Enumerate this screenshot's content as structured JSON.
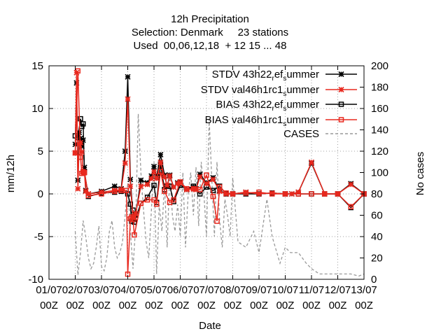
{
  "chart_data": {
    "type": "line",
    "title_lines": [
      "12h Precipitation",
      "Selection: Denmark     23 stations",
      "Used  00,06,12,18  + 12 15 ... 48"
    ],
    "xlabel": "Date",
    "ylabel": "mm/12h",
    "y2label": "No cases",
    "x_ticks": [
      "01/07",
      "02/07",
      "03/07",
      "04/07",
      "05/07",
      "06/07",
      "07/07",
      "08/07",
      "09/07",
      "10/07",
      "11/07",
      "12/07",
      "13/07"
    ],
    "x_tick_sub": "00Z",
    "x_range": [
      1,
      13
    ],
    "ylim": [
      -10,
      15
    ],
    "y_ticks": [
      -10,
      -5,
      0,
      5,
      10,
      15
    ],
    "y2lim": [
      0,
      200
    ],
    "y2_ticks": [
      0,
      20,
      40,
      60,
      80,
      100,
      120,
      140,
      160,
      180,
      200
    ],
    "grid": true,
    "legend_position": "top-right",
    "series": [
      {
        "name": "STDV 43h22_ref_summer",
        "label_main": "STDV 43h22",
        "label_sub1": "r",
        "label_mid": "ef",
        "label_sub2": "s",
        "label_end": "ummer",
        "color": "#000000",
        "dash": "",
        "marker": "star",
        "axis": "y1",
        "x": [
          2.0,
          2.05,
          2.1,
          2.15,
          2.2,
          2.25,
          2.3,
          2.35,
          2.4,
          2.5,
          3.0,
          3.5,
          3.75,
          3.9,
          4.0,
          4.1,
          4.2,
          4.25,
          4.3,
          4.5,
          4.75,
          4.9,
          5.0,
          5.1,
          5.25,
          5.4,
          5.5,
          5.6,
          5.75,
          5.9,
          6.0,
          6.25,
          6.5,
          6.6,
          6.75,
          7.0,
          7.25,
          7.5,
          7.75,
          8.0,
          8.5,
          9.0,
          9.5,
          10.0,
          10.25,
          10.5,
          11.0,
          11.5,
          12.0,
          12.5,
          13.0
        ],
        "y": [
          5.8,
          13.0,
          1.6,
          7.2,
          6.5,
          5.6,
          6.3,
          3.1,
          0.4,
          0.0,
          0.3,
          0.9,
          0.6,
          5.0,
          13.7,
          1.7,
          -2.6,
          -3.0,
          -2.5,
          1.6,
          1.3,
          2.1,
          3.2,
          2.0,
          4.6,
          2.2,
          0.9,
          2.2,
          0.8,
          1.3,
          1.4,
          0.5,
          0.8,
          0.6,
          2.3,
          1.3,
          1.9,
          0.4,
          0.0,
          0.0,
          0.2,
          0.0,
          0.1,
          0.0,
          0.0,
          0.2,
          3.6,
          0.0,
          0.0,
          1.2,
          0.0
        ]
      },
      {
        "name": "STDV val46h1rc1_summer",
        "label_main": "STDV val46h1rc1",
        "label_sub1": "s",
        "label_mid": "",
        "label_sub2": "",
        "label_end": "ummer",
        "color": "#e8281e",
        "dash": "",
        "marker": "star",
        "axis": "y1",
        "x": [
          2.0,
          2.05,
          2.1,
          2.15,
          2.2,
          2.25,
          2.3,
          2.35,
          2.4,
          2.5,
          3.0,
          3.5,
          3.75,
          3.9,
          4.0,
          4.1,
          4.2,
          4.25,
          4.3,
          4.5,
          4.75,
          4.9,
          5.0,
          5.1,
          5.25,
          5.4,
          5.5,
          5.6,
          5.75,
          5.9,
          6.0,
          6.25,
          6.5,
          6.6,
          6.75,
          7.0,
          7.25,
          7.5,
          7.75,
          8.0,
          8.5,
          9.0,
          9.5,
          10.0,
          10.25,
          10.5,
          11.0,
          11.5,
          12.0,
          12.5,
          13.0
        ],
        "y": [
          4.8,
          14.2,
          0.6,
          5.8,
          6.0,
          4.9,
          2.4,
          2.5,
          0.3,
          0.0,
          0.2,
          0.4,
          0.5,
          3.6,
          11.1,
          0.9,
          -2.7,
          -2.8,
          -2.3,
          0.9,
          1.1,
          1.8,
          2.6,
          1.8,
          3.7,
          2.0,
          1.0,
          2.1,
          0.8,
          1.2,
          1.3,
          0.5,
          0.6,
          0.5,
          2.0,
          1.2,
          1.7,
          0.3,
          0.0,
          0.0,
          0.2,
          0.0,
          0.1,
          0.0,
          0.0,
          0.2,
          3.7,
          0.0,
          0.0,
          1.1,
          0.0
        ]
      },
      {
        "name": "BIAS 43h22_ref_summer",
        "label_main": "BIAS 43h22",
        "label_sub1": "r",
        "label_mid": "ef",
        "label_sub2": "s",
        "label_end": "ummer",
        "color": "#000000",
        "dash": "",
        "marker": "square",
        "axis": "y1",
        "x": [
          2.0,
          2.1,
          2.2,
          2.25,
          2.3,
          2.35,
          2.5,
          3.0,
          3.5,
          3.75,
          4.0,
          4.1,
          4.15,
          4.2,
          4.25,
          4.5,
          4.75,
          5.0,
          5.1,
          5.25,
          5.4,
          5.6,
          5.75,
          6.0,
          6.25,
          6.5,
          6.75,
          7.0,
          7.25,
          7.5,
          7.75,
          8.0,
          8.5,
          9.0,
          9.5,
          10.0,
          10.5,
          11.0,
          11.5,
          12.0,
          12.5,
          13.0
        ],
        "y": [
          6.8,
          6.6,
          8.8,
          7.9,
          8.2,
          2.6,
          -0.3,
          0.1,
          0.2,
          0.3,
          0.0,
          -1.2,
          -3.2,
          -1.9,
          -3.3,
          -1.1,
          -0.4,
          1.0,
          -1.0,
          3.5,
          0.5,
          0.9,
          -0.9,
          1.0,
          0.6,
          0.9,
          0.0,
          0.8,
          0.4,
          0.9,
          0.0,
          0.0,
          0.0,
          0.0,
          0.1,
          0.0,
          0.0,
          0.0,
          0.0,
          0.0,
          -1.6,
          0.0
        ]
      },
      {
        "name": "BIAS val46h1rc1_summer",
        "label_main": "BIAS val46h1rc1",
        "label_sub1": "s",
        "label_mid": "",
        "label_sub2": "",
        "label_end": "ummer",
        "color": "#e8281e",
        "dash": "",
        "marker": "square",
        "axis": "y1",
        "x": [
          2.0,
          2.1,
          2.2,
          2.25,
          2.3,
          2.35,
          2.5,
          3.0,
          3.5,
          3.75,
          3.95,
          4.0,
          4.1,
          4.15,
          4.2,
          4.25,
          4.5,
          4.75,
          5.0,
          5.1,
          5.25,
          5.4,
          5.6,
          5.75,
          6.0,
          6.25,
          6.5,
          6.75,
          7.0,
          7.25,
          7.4,
          7.5,
          7.75,
          8.0,
          8.5,
          9.0,
          9.5,
          10.0,
          10.5,
          11.0,
          11.5,
          12.0,
          12.5,
          13.0
        ],
        "y": [
          4.8,
          14.4,
          4.3,
          2.4,
          2.6,
          2.5,
          -0.2,
          0.0,
          0.3,
          0.4,
          0.4,
          -9.4,
          -2.9,
          -2.7,
          -3.0,
          -4.8,
          -1.1,
          -0.7,
          -0.7,
          -1.2,
          2.6,
          0.3,
          -1.0,
          -0.7,
          1.4,
          0.6,
          0.6,
          0.5,
          2.2,
          -0.3,
          -3.2,
          0.8,
          0.1,
          0.0,
          0.1,
          0.2,
          0.0,
          0.0,
          0.0,
          0.0,
          0.0,
          0.0,
          -1.5,
          0.0
        ]
      },
      {
        "name": "CASES",
        "label_main": "CASES",
        "label_sub1": "",
        "label_mid": "",
        "label_sub2": "",
        "label_end": "",
        "color": "#999999",
        "dash": "4,3",
        "marker": "none",
        "axis": "y2",
        "x": [
          2.0,
          2.1,
          2.2,
          2.3,
          2.4,
          2.5,
          2.6,
          2.7,
          2.8,
          2.9,
          3.0,
          3.1,
          3.2,
          3.3,
          3.4,
          3.5,
          3.6,
          3.7,
          3.8,
          3.9,
          4.0,
          4.1,
          4.2,
          4.3,
          4.4,
          4.5,
          4.6,
          4.7,
          4.8,
          4.9,
          5.0,
          5.1,
          5.2,
          5.3,
          5.4,
          5.5,
          5.6,
          5.7,
          5.8,
          5.9,
          6.0,
          6.1,
          6.2,
          6.3,
          6.4,
          6.5,
          6.6,
          6.7,
          6.8,
          6.9,
          7.0,
          7.1,
          7.2,
          7.3,
          7.4,
          7.5,
          7.6,
          7.7,
          7.8,
          7.9,
          8.0,
          8.2,
          8.5,
          8.8,
          9.0,
          9.3,
          9.5,
          9.8,
          10.0,
          10.2,
          10.5,
          10.8,
          11.0,
          11.3,
          11.5,
          11.8,
          12.0,
          12.3,
          12.5,
          12.8,
          13.0
        ],
        "y": [
          45,
          4,
          25,
          55,
          40,
          20,
          10,
          15,
          30,
          50,
          12,
          8,
          20,
          45,
          55,
          30,
          20,
          25,
          35,
          60,
          90,
          45,
          10,
          50,
          155,
          100,
          65,
          35,
          20,
          65,
          110,
          5,
          70,
          45,
          90,
          30,
          100,
          60,
          45,
          70,
          40,
          100,
          30,
          80,
          100,
          60,
          105,
          50,
          110,
          80,
          40,
          150,
          95,
          40,
          110,
          55,
          30,
          75,
          60,
          40,
          95,
          35,
          30,
          45,
          25,
          75,
          40,
          15,
          30,
          25,
          25,
          15,
          10,
          5,
          5,
          5,
          5,
          5,
          5,
          3,
          5
        ]
      }
    ]
  }
}
